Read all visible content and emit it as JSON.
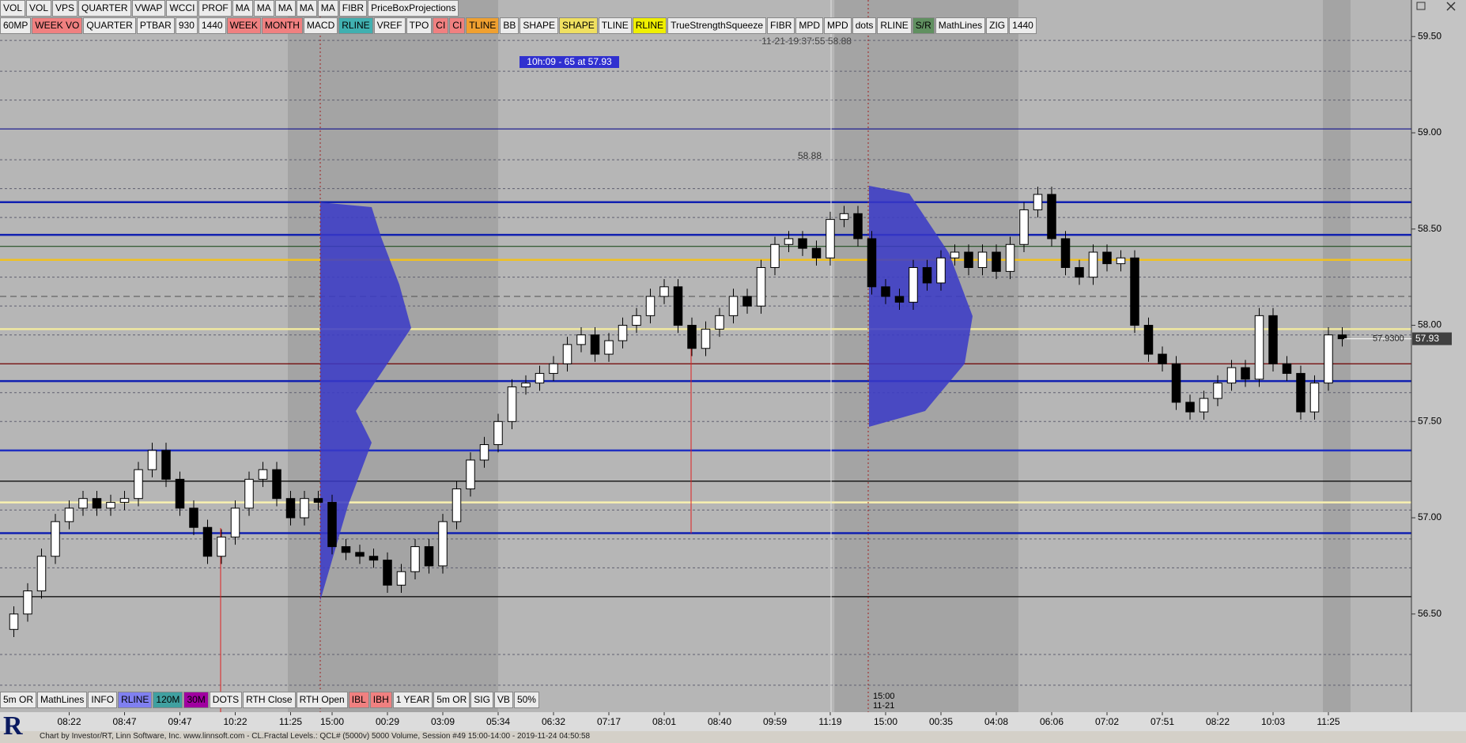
{
  "toolbar_top": [
    {
      "label": "VOL"
    },
    {
      "label": "VOL"
    },
    {
      "label": "VPS"
    },
    {
      "label": "QUARTER"
    },
    {
      "label": "VWAP"
    },
    {
      "label": "WCCI"
    },
    {
      "label": "PROF"
    },
    {
      "label": "MA"
    },
    {
      "label": "MA"
    },
    {
      "label": "MA"
    },
    {
      "label": "MA"
    },
    {
      "label": "MA"
    },
    {
      "label": "FIBR"
    },
    {
      "label": "PriceBoxProjections"
    }
  ],
  "toolbar_second": [
    {
      "label": "60MP"
    },
    {
      "label": "WEEK VO",
      "bg": "#f08080"
    },
    {
      "label": "QUARTER"
    },
    {
      "label": "PTBAR"
    },
    {
      "label": "930"
    },
    {
      "label": "1440"
    },
    {
      "label": "WEEK",
      "bg": "#f08080"
    },
    {
      "label": "MONTH",
      "bg": "#f08080"
    },
    {
      "label": "MACD"
    },
    {
      "label": "RLINE",
      "bg": "#40b0b0"
    },
    {
      "label": "VREF"
    },
    {
      "label": "TPO"
    },
    {
      "label": "CI",
      "bg": "#f08080"
    },
    {
      "label": "CI",
      "bg": "#f08080"
    },
    {
      "label": "TLINE",
      "bg": "#f0a030"
    },
    {
      "label": "BB"
    },
    {
      "label": "SHAPE"
    },
    {
      "label": "SHAPE",
      "bg": "#f0e060"
    },
    {
      "label": "TLINE"
    },
    {
      "label": "RLINE",
      "bg": "#f0f000"
    },
    {
      "label": "TrueStrengthSqueeze"
    },
    {
      "label": "FIBR"
    },
    {
      "label": "MPD"
    },
    {
      "label": "MPD"
    },
    {
      "label": "dots"
    },
    {
      "label": "RLINE"
    },
    {
      "label": "S/R",
      "bg": "#609060"
    },
    {
      "label": "MathLines"
    },
    {
      "label": "ZIG"
    },
    {
      "label": "1440"
    }
  ],
  "toolbar_bottom": [
    {
      "label": "5m OR"
    },
    {
      "label": "MathLines"
    },
    {
      "label": "INFO"
    },
    {
      "label": "RLINE",
      "bg": "#8080f0"
    },
    {
      "label": "120M",
      "bg": "#40a0a0"
    },
    {
      "label": "30M",
      "bg": "#a000a0"
    },
    {
      "label": "DOTS"
    },
    {
      "label": "RTH Close"
    },
    {
      "label": "RTH Open"
    },
    {
      "label": "IBL",
      "bg": "#f08080"
    },
    {
      "label": "IBH",
      "bg": "#f08080"
    },
    {
      "label": "1 YEAR"
    },
    {
      "label": "5m OR"
    },
    {
      "label": "SIG"
    },
    {
      "label": "VB"
    },
    {
      "label": "50%"
    }
  ],
  "logo_text": "R",
  "footer": "Chart by Investor/RT, Linn Software, Inc. www.linnsoft.com - CL.Fractal Levels.: QCL# (5000v) 5000 Volume, Session #49 15:00-14:00 - 2019-11-24 04:50:58",
  "chart_data": {
    "type": "candlestick",
    "annotations": {
      "cursor_info": "10h:09  - 65 at 57.93",
      "high_label": "58.88",
      "crosshair_info": "11-21-19:37:55  58.88",
      "session_time": "15:00",
      "session_date": "11-21"
    },
    "last_price": {
      "value": 57.93,
      "label": "57.9300"
    },
    "xlim": [
      -1,
      101
    ],
    "ylim": [
      55.99,
      59.69
    ],
    "yticks": [
      {
        "value": 59.5,
        "label": "59.50"
      },
      {
        "value": 59.0,
        "label": "59.00"
      },
      {
        "value": 58.5,
        "label": "58.50"
      },
      {
        "value": 58.0,
        "label": "58.00"
      },
      {
        "value": 57.5,
        "label": "57.50"
      },
      {
        "value": 57.0,
        "label": "57.00"
      },
      {
        "value": 56.5,
        "label": "56.50"
      }
    ],
    "xticks": [
      {
        "value": 4,
        "label": "08:22"
      },
      {
        "value": 8,
        "label": "08:47"
      },
      {
        "value": 12,
        "label": "09:47"
      },
      {
        "value": 16,
        "label": "10:22"
      },
      {
        "value": 20,
        "label": "11:25"
      },
      {
        "value": 23,
        "label": "15:00"
      },
      {
        "value": 27,
        "label": "00:29"
      },
      {
        "value": 31,
        "label": "03:09"
      },
      {
        "value": 35,
        "label": "05:34"
      },
      {
        "value": 39,
        "label": "06:32"
      },
      {
        "value": 43,
        "label": "07:17"
      },
      {
        "value": 47,
        "label": "08:01"
      },
      {
        "value": 51,
        "label": "08:40"
      },
      {
        "value": 55,
        "label": "09:59"
      },
      {
        "value": 59,
        "label": "11:19"
      },
      {
        "value": 63,
        "label": "15:00"
      },
      {
        "value": 67,
        "label": "00:35"
      },
      {
        "value": 71,
        "label": "04:08"
      },
      {
        "value": 75,
        "label": "06:06"
      },
      {
        "value": 79,
        "label": "07:02"
      },
      {
        "value": 83,
        "label": "07:51"
      },
      {
        "value": 87,
        "label": "08:22"
      },
      {
        "value": 91,
        "label": "10:03"
      },
      {
        "value": 95,
        "label": "11:25"
      }
    ],
    "shaded_ranges": [
      [
        19.8,
        35
      ],
      [
        59.3,
        72.6
      ],
      [
        94.6,
        96.6
      ]
    ],
    "levels": [
      {
        "value": 59.48,
        "color": "#606070",
        "style": "dot"
      },
      {
        "value": 59.32,
        "color": "#606070",
        "style": "dot"
      },
      {
        "value": 59.17,
        "color": "#606070",
        "style": "dot"
      },
      {
        "value": 59.02,
        "color": "#202090",
        "style": "solid"
      },
      {
        "value": 58.86,
        "color": "#606070",
        "style": "dot"
      },
      {
        "value": 58.71,
        "color": "#606070",
        "style": "dot"
      },
      {
        "value": 58.64,
        "color": "#1020b0",
        "style": "thick"
      },
      {
        "value": 58.56,
        "color": "#606070",
        "style": "dot"
      },
      {
        "value": 58.47,
        "color": "#1020b0",
        "style": "thick"
      },
      {
        "value": 58.41,
        "color": "#205020",
        "style": "solid"
      },
      {
        "value": 58.34,
        "color": "#f0c020",
        "style": "thick"
      },
      {
        "value": 58.25,
        "color": "#606070",
        "style": "dot"
      },
      {
        "value": 58.15,
        "color": "#505050",
        "style": "dash"
      },
      {
        "value": 58.1,
        "color": "#606070",
        "style": "dot"
      },
      {
        "value": 57.98,
        "color": "#f0e8a0",
        "style": "thick"
      },
      {
        "value": 57.95,
        "color": "#606070",
        "style": "dot"
      },
      {
        "value": 57.8,
        "color": "#700000",
        "style": "solid"
      },
      {
        "value": 57.71,
        "color": "#1020b0",
        "style": "thick"
      },
      {
        "value": 57.65,
        "color": "#606070",
        "style": "dot"
      },
      {
        "value": 57.5,
        "color": "#606070",
        "style": "dot"
      },
      {
        "value": 57.35,
        "color": "#2030c0",
        "style": "thick"
      },
      {
        "value": 57.19,
        "color": "#000000",
        "style": "solid"
      },
      {
        "value": 57.08,
        "color": "#f8f0b0",
        "style": "thick"
      },
      {
        "value": 57.04,
        "color": "#606070",
        "style": "dot"
      },
      {
        "value": 56.92,
        "color": "#1020b0",
        "style": "thick"
      },
      {
        "value": 56.89,
        "color": "#606070",
        "style": "dot"
      },
      {
        "value": 56.74,
        "color": "#606070",
        "style": "dot"
      },
      {
        "value": 56.59,
        "color": "#000000",
        "style": "solid"
      },
      {
        "value": 56.29,
        "color": "#606070",
        "style": "dot"
      },
      {
        "value": 56.13,
        "color": "#606070",
        "style": "dot"
      }
    ],
    "x": [
      0,
      1,
      2,
      3,
      4,
      5,
      6,
      7,
      8,
      9,
      10,
      11,
      12,
      13,
      14,
      15,
      16,
      17,
      18,
      19,
      20,
      21,
      22,
      23,
      24,
      25,
      26,
      27,
      28,
      29,
      30,
      31,
      32,
      33,
      34,
      35,
      36,
      37,
      38,
      39,
      40,
      41,
      42,
      43,
      44,
      45,
      46,
      47,
      48,
      49,
      50,
      51,
      52,
      53,
      54,
      55,
      56,
      57,
      58,
      59,
      60,
      61,
      62,
      63,
      64,
      65,
      66,
      67,
      68,
      69,
      70,
      71,
      72,
      73,
      74,
      75,
      76,
      77,
      78,
      79,
      80,
      81,
      82,
      83,
      84,
      85,
      86,
      87,
      88,
      89,
      90,
      91,
      92,
      93,
      94,
      95,
      96
    ],
    "open": [
      56.42,
      56.5,
      56.62,
      56.8,
      56.98,
      57.05,
      57.1,
      57.05,
      57.08,
      57.1,
      57.25,
      57.35,
      57.2,
      57.05,
      56.95,
      56.8,
      56.9,
      57.05,
      57.2,
      57.25,
      57.1,
      57.0,
      57.1,
      57.08,
      56.85,
      56.82,
      56.8,
      56.78,
      56.65,
      56.72,
      56.85,
      56.75,
      56.98,
      57.15,
      57.3,
      57.38,
      57.5,
      57.68,
      57.7,
      57.75,
      57.8,
      57.9,
      57.95,
      57.85,
      57.92,
      58.0,
      58.05,
      58.15,
      58.2,
      58.0,
      57.88,
      57.98,
      58.05,
      58.15,
      58.1,
      58.3,
      58.42,
      58.45,
      58.4,
      58.35,
      58.55,
      58.58,
      58.45,
      58.2,
      58.15,
      58.12,
      58.3,
      58.22,
      58.35,
      58.38,
      58.3,
      58.38,
      58.28,
      58.42,
      58.6,
      58.68,
      58.45,
      58.3,
      58.25,
      58.38,
      58.32,
      58.35,
      58.0,
      57.85,
      57.8,
      57.6,
      57.55,
      57.62,
      57.7,
      57.78,
      57.72,
      58.05,
      57.8,
      57.75,
      57.55,
      57.7,
      57.95
    ],
    "high": [
      56.54,
      56.66,
      56.84,
      57.02,
      57.09,
      57.14,
      57.14,
      57.12,
      57.14,
      57.29,
      57.39,
      57.39,
      57.24,
      57.09,
      56.99,
      56.94,
      57.09,
      57.24,
      57.29,
      57.29,
      57.14,
      57.14,
      57.14,
      57.12,
      56.89,
      56.86,
      56.84,
      56.82,
      56.76,
      56.89,
      56.89,
      57.02,
      57.19,
      57.34,
      57.42,
      57.54,
      57.72,
      57.74,
      57.79,
      57.84,
      57.94,
      57.99,
      57.99,
      57.96,
      58.04,
      58.09,
      58.19,
      58.24,
      58.24,
      58.04,
      58.02,
      58.09,
      58.19,
      58.19,
      58.34,
      58.46,
      58.49,
      58.49,
      58.44,
      58.59,
      58.62,
      58.62,
      58.49,
      58.24,
      58.19,
      58.34,
      58.34,
      58.39,
      58.42,
      58.42,
      58.42,
      58.42,
      58.46,
      58.64,
      58.72,
      58.72,
      58.49,
      58.34,
      58.42,
      58.42,
      58.39,
      58.39,
      58.04,
      57.89,
      57.84,
      57.64,
      57.66,
      57.74,
      57.82,
      57.82,
      58.09,
      58.09,
      57.84,
      57.79,
      57.74,
      57.99,
      57.99
    ],
    "low": [
      56.38,
      56.46,
      56.58,
      56.76,
      56.94,
      57.01,
      57.01,
      57.01,
      57.04,
      57.06,
      57.21,
      57.16,
      57.01,
      56.91,
      56.76,
      56.76,
      56.86,
      57.01,
      57.16,
      57.06,
      56.96,
      56.96,
      57.04,
      56.81,
      56.78,
      56.76,
      56.74,
      56.61,
      56.61,
      56.68,
      56.71,
      56.71,
      56.94,
      57.11,
      57.26,
      57.34,
      57.46,
      57.64,
      57.66,
      57.71,
      57.76,
      57.86,
      57.81,
      57.81,
      57.88,
      57.96,
      58.01,
      58.11,
      57.96,
      57.84,
      57.84,
      57.94,
      58.01,
      58.06,
      58.06,
      58.26,
      58.38,
      58.36,
      58.31,
      58.31,
      58.51,
      58.41,
      58.16,
      58.11,
      58.08,
      58.08,
      58.18,
      58.18,
      58.31,
      58.26,
      58.26,
      58.24,
      58.24,
      58.38,
      58.56,
      58.41,
      58.26,
      58.21,
      58.21,
      58.28,
      58.28,
      57.96,
      57.81,
      57.76,
      57.56,
      57.51,
      57.51,
      57.58,
      57.66,
      57.68,
      57.68,
      57.76,
      57.71,
      57.51,
      57.51,
      57.66,
      57.89
    ],
    "close": [
      56.5,
      56.62,
      56.8,
      56.98,
      57.05,
      57.1,
      57.05,
      57.08,
      57.1,
      57.25,
      57.35,
      57.2,
      57.05,
      56.95,
      56.8,
      56.9,
      57.05,
      57.2,
      57.25,
      57.1,
      57.0,
      57.1,
      57.08,
      56.85,
      56.82,
      56.8,
      56.78,
      56.65,
      56.72,
      56.85,
      56.75,
      56.98,
      57.15,
      57.3,
      57.38,
      57.5,
      57.68,
      57.7,
      57.75,
      57.8,
      57.9,
      57.95,
      57.85,
      57.92,
      58.0,
      58.05,
      58.15,
      58.2,
      58.0,
      57.88,
      57.98,
      58.05,
      58.15,
      58.1,
      58.3,
      58.42,
      58.45,
      58.4,
      58.35,
      58.55,
      58.58,
      58.45,
      58.2,
      58.15,
      58.12,
      58.3,
      58.22,
      58.35,
      58.38,
      58.3,
      58.38,
      58.28,
      58.42,
      58.6,
      58.68,
      58.45,
      58.3,
      58.25,
      58.38,
      58.32,
      58.35,
      58.0,
      57.85,
      57.8,
      57.6,
      57.55,
      57.62,
      57.7,
      57.78,
      57.72,
      58.05,
      57.8,
      57.75,
      57.55,
      57.7,
      57.95,
      57.93
    ],
    "up_color": "#ffffff",
    "down_color": "#000000"
  }
}
